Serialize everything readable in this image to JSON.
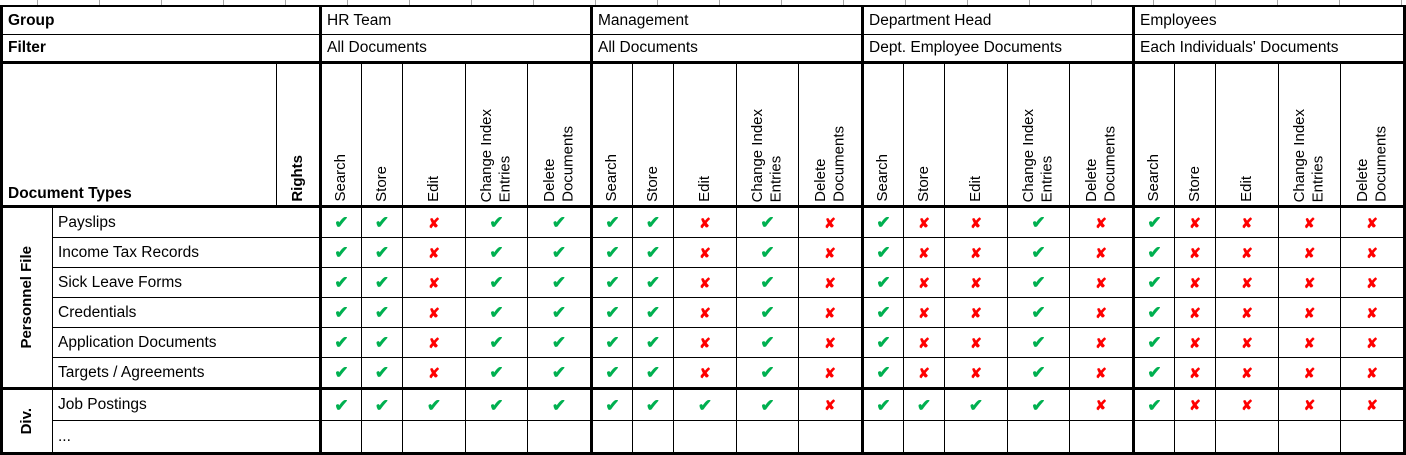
{
  "meta": {
    "group_label": "Group",
    "filter_label": "Filter",
    "document_types_label": "Document Types",
    "rights_label": "Rights"
  },
  "groups": [
    {
      "name": "HR Team",
      "filter": "All Documents"
    },
    {
      "name": "Management",
      "filter": "All Documents"
    },
    {
      "name": "Department Head",
      "filter": "Dept. Employee Documents"
    },
    {
      "name": "Employees",
      "filter": "Each Individuals' Documents"
    }
  ],
  "rights": [
    "Search",
    "Store",
    "Edit",
    "Change Index\nEntries",
    "Delete\nDocuments"
  ],
  "sections": [
    {
      "label": "Personnel File",
      "rows": [
        {
          "name": "Payslips",
          "marks": [
            [
              "c",
              "c",
              "x",
              "c",
              "c"
            ],
            [
              "c",
              "c",
              "x",
              "c",
              "x"
            ],
            [
              "c",
              "x",
              "x",
              "c",
              "x"
            ],
            [
              "c",
              "x",
              "x",
              "x",
              "x"
            ]
          ]
        },
        {
          "name": "Income Tax Records",
          "marks": [
            [
              "c",
              "c",
              "x",
              "c",
              "c"
            ],
            [
              "c",
              "c",
              "x",
              "c",
              "x"
            ],
            [
              "c",
              "x",
              "x",
              "c",
              "x"
            ],
            [
              "c",
              "x",
              "x",
              "x",
              "x"
            ]
          ]
        },
        {
          "name": "Sick Leave Forms",
          "marks": [
            [
              "c",
              "c",
              "x",
              "c",
              "c"
            ],
            [
              "c",
              "c",
              "x",
              "c",
              "x"
            ],
            [
              "c",
              "x",
              "x",
              "c",
              "x"
            ],
            [
              "c",
              "x",
              "x",
              "x",
              "x"
            ]
          ]
        },
        {
          "name": "Credentials",
          "marks": [
            [
              "c",
              "c",
              "x",
              "c",
              "c"
            ],
            [
              "c",
              "c",
              "x",
              "c",
              "x"
            ],
            [
              "c",
              "x",
              "x",
              "c",
              "x"
            ],
            [
              "c",
              "x",
              "x",
              "x",
              "x"
            ]
          ]
        },
        {
          "name": "Application Documents",
          "marks": [
            [
              "c",
              "c",
              "x",
              "c",
              "c"
            ],
            [
              "c",
              "c",
              "x",
              "c",
              "x"
            ],
            [
              "c",
              "x",
              "x",
              "c",
              "x"
            ],
            [
              "c",
              "x",
              "x",
              "x",
              "x"
            ]
          ]
        },
        {
          "name": "Targets / Agreements",
          "marks": [
            [
              "c",
              "c",
              "x",
              "c",
              "c"
            ],
            [
              "c",
              "c",
              "x",
              "c",
              "x"
            ],
            [
              "c",
              "x",
              "x",
              "c",
              "x"
            ],
            [
              "c",
              "x",
              "x",
              "x",
              "x"
            ]
          ]
        }
      ]
    },
    {
      "label": "Div.",
      "rows": [
        {
          "name": "Job Postings",
          "marks": [
            [
              "c",
              "c",
              "c",
              "c",
              "c"
            ],
            [
              "c",
              "c",
              "c",
              "c",
              "x"
            ],
            [
              "c",
              "c",
              "c",
              "c",
              "x"
            ],
            [
              "c",
              "x",
              "x",
              "x",
              "x"
            ]
          ]
        },
        {
          "name": "...",
          "marks": [
            [
              "",
              "",
              "",
              "",
              ""
            ],
            [
              "",
              "",
              "",
              "",
              ""
            ],
            [
              "",
              "",
              "",
              "",
              ""
            ],
            [
              "",
              "",
              "",
              "",
              ""
            ]
          ]
        }
      ]
    }
  ],
  "icons": {
    "check": "✔",
    "cross": "✘"
  },
  "colors": {
    "check": "#00B050",
    "cross": "#FF0000",
    "grid": "#000000"
  }
}
